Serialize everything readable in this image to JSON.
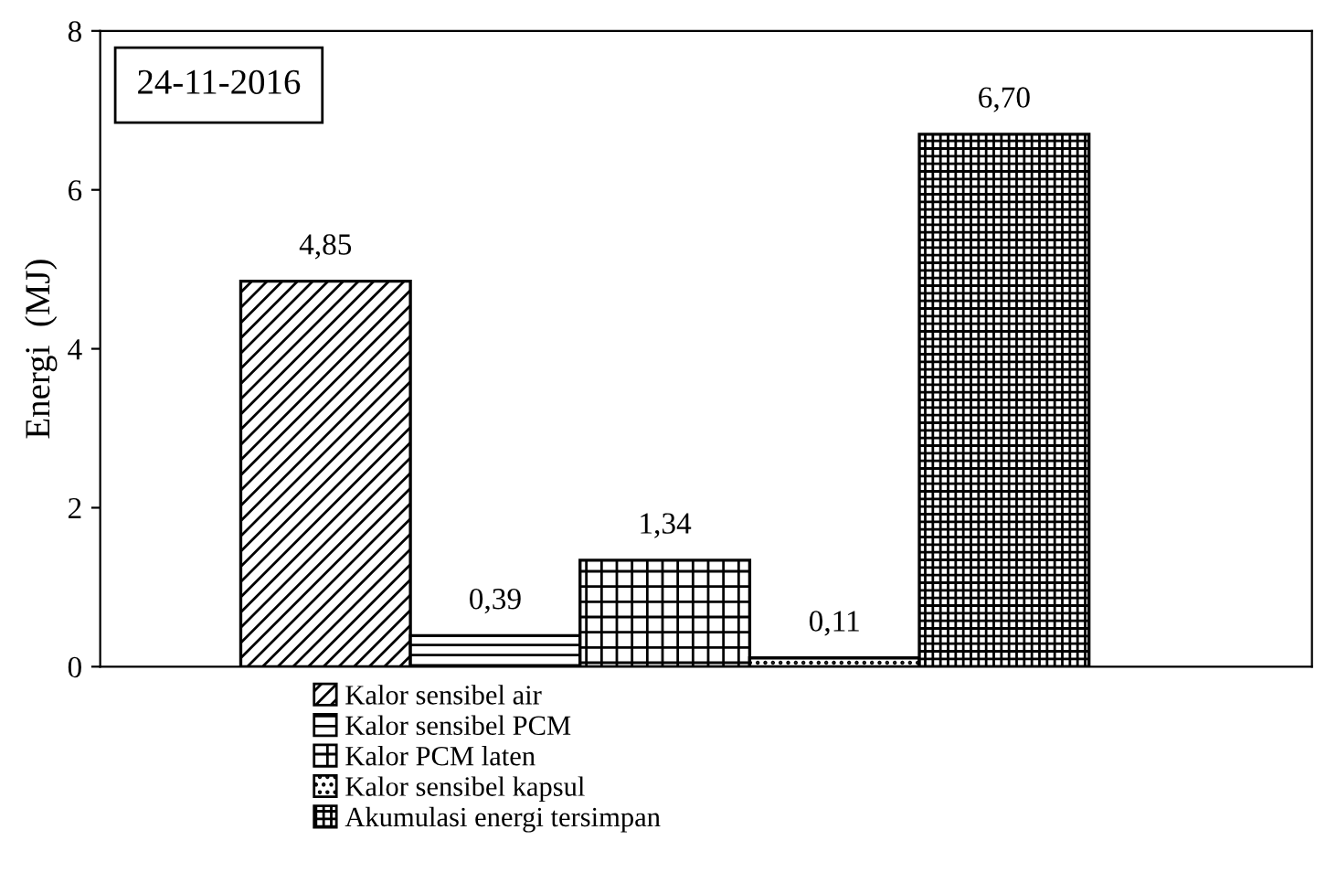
{
  "chart_data": {
    "type": "bar",
    "ylabel": "Energi  (MJ)",
    "categories": [
      null
    ],
    "series": [
      {
        "name": "Kalor sensibel air",
        "color": "#000000",
        "values": [
          4.85
        ],
        "value_labels": [
          "4,85"
        ]
      },
      {
        "name": "Kalor sensibel PCM",
        "color": "#000000",
        "values": [
          0.39
        ],
        "value_labels": [
          "0,39"
        ]
      },
      {
        "name": "Kalor PCM laten",
        "color": "#000000",
        "values": [
          1.34
        ],
        "value_labels": [
          "1,34"
        ]
      },
      {
        "name": "Kalor sensibel kapsul",
        "color": "#000000",
        "values": [
          0.11
        ],
        "value_labels": [
          "0,11"
        ]
      },
      {
        "name": "Akumulasi energi tersimpan",
        "color": "#000000",
        "values": [
          6.7
        ],
        "value_labels": [
          "6,70"
        ]
      }
    ],
    "ylim": [
      0,
      8
    ],
    "yticks": [
      0,
      2,
      4,
      6,
      8
    ],
    "annotations": [
      "24-11-2016"
    ],
    "legend": "bottom",
    "grid": false
  }
}
